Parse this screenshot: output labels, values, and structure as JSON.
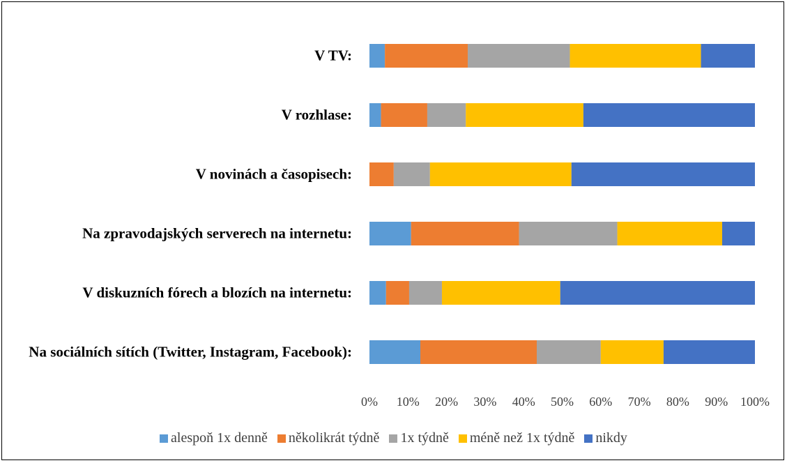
{
  "chart_data": {
    "type": "stacked-bar-horizontal",
    "categories": [
      "V TV:",
      "V rozhlase:",
      "V novinách a časopisech:",
      "Na zpravodajských serverech na internetu:",
      "V diskuzních fórech a blozích na internetu:",
      "Na sociálních sítích (Twitter, Instagram, Facebook):"
    ],
    "series": [
      {
        "name": "alespoň 1x denně",
        "color": "#5b9bd5",
        "values": [
          4,
          3,
          0,
          10.8,
          4.3,
          13.2
        ]
      },
      {
        "name": "několikrát týdně",
        "color": "#ed7d31",
        "values": [
          21.5,
          12,
          6.3,
          28,
          6,
          30.2
        ]
      },
      {
        "name": "1x týdně",
        "color": "#a5a5a5",
        "values": [
          26.5,
          10,
          9.4,
          25.5,
          8.5,
          16.6
        ]
      },
      {
        "name": "méně než 1x týdně",
        "color": "#ffc000",
        "values": [
          34,
          30.5,
          36.7,
          27.2,
          30.7,
          16.3
        ]
      },
      {
        "name": "nikdy",
        "color": "#4472c4",
        "values": [
          14,
          44.5,
          47.6,
          8.5,
          50.5,
          23.7
        ]
      }
    ],
    "xlim": [
      0,
      100
    ],
    "xticks": [
      {
        "value": 0,
        "label": "0%"
      },
      {
        "value": 10,
        "label": "10%"
      },
      {
        "value": 20,
        "label": "20%"
      },
      {
        "value": 30,
        "label": "30%"
      },
      {
        "value": 40,
        "label": "40%"
      },
      {
        "value": 50,
        "label": "50%"
      },
      {
        "value": 60,
        "label": "60%"
      },
      {
        "value": 70,
        "label": "70%"
      },
      {
        "value": 80,
        "label": "80%"
      },
      {
        "value": 90,
        "label": "90%"
      },
      {
        "value": 100,
        "label": "100%"
      }
    ],
    "legend": "bottom"
  }
}
